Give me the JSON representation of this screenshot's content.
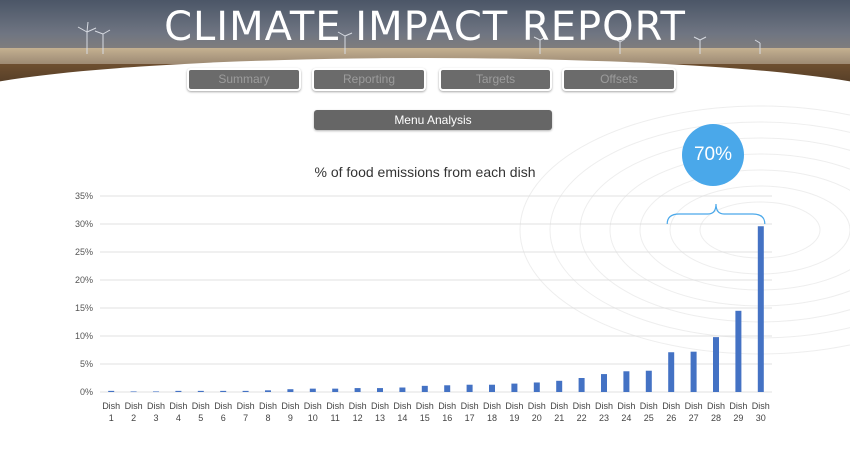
{
  "header": {
    "title": "CLIMATE IMPACT REPORT"
  },
  "nav": {
    "tabs": [
      {
        "label": "Summary"
      },
      {
        "label": "Reporting"
      },
      {
        "label": "Targets"
      },
      {
        "label": "Offsets"
      }
    ],
    "subtab": {
      "label": "Menu Analysis"
    }
  },
  "callout": {
    "value": "70%",
    "color": "#4aa8ea"
  },
  "colors": {
    "bar": "#4472c4",
    "gridline": "#d9d9d9",
    "button": "#666666"
  },
  "chart_data": {
    "type": "bar",
    "title": "% of food emissions from each dish",
    "xlabel": "",
    "ylabel": "",
    "ylim": [
      0,
      35
    ],
    "yticks": [
      "0%",
      "5%",
      "10%",
      "15%",
      "20%",
      "25%",
      "30%",
      "35%"
    ],
    "grid": true,
    "categories": [
      [
        "Dish",
        "1"
      ],
      [
        "Dish",
        "2"
      ],
      [
        "Dish",
        "3"
      ],
      [
        "Dish",
        "4"
      ],
      [
        "Dish",
        "5"
      ],
      [
        "Dish",
        "6"
      ],
      [
        "Dish",
        "7"
      ],
      [
        "Dish",
        "8"
      ],
      [
        "Dish",
        "9"
      ],
      [
        "Dish",
        "10"
      ],
      [
        "Dish",
        "11"
      ],
      [
        "Dish",
        "12"
      ],
      [
        "Dish",
        "13"
      ],
      [
        "Dish",
        "14"
      ],
      [
        "Dish",
        "15"
      ],
      [
        "Dish",
        "16"
      ],
      [
        "Dish",
        "17"
      ],
      [
        "Dish",
        "18"
      ],
      [
        "Dish",
        "19"
      ],
      [
        "Dish",
        "20"
      ],
      [
        "Dish",
        "21"
      ],
      [
        "Dish",
        "22"
      ],
      [
        "Dish",
        "23"
      ],
      [
        "Dish",
        "24"
      ],
      [
        "Dish",
        "25"
      ],
      [
        "Dish",
        "26"
      ],
      [
        "Dish",
        "27"
      ],
      [
        "Dish",
        "28"
      ],
      [
        "Dish",
        "29"
      ],
      [
        "Dish",
        "30"
      ]
    ],
    "values": [
      0.2,
      0.1,
      0.1,
      0.2,
      0.2,
      0.2,
      0.2,
      0.3,
      0.5,
      0.6,
      0.6,
      0.7,
      0.7,
      0.8,
      1.1,
      1.2,
      1.3,
      1.3,
      1.5,
      1.7,
      2.0,
      2.5,
      3.2,
      3.7,
      3.8,
      7.1,
      7.2,
      9.8,
      14.5,
      29.6
    ]
  }
}
